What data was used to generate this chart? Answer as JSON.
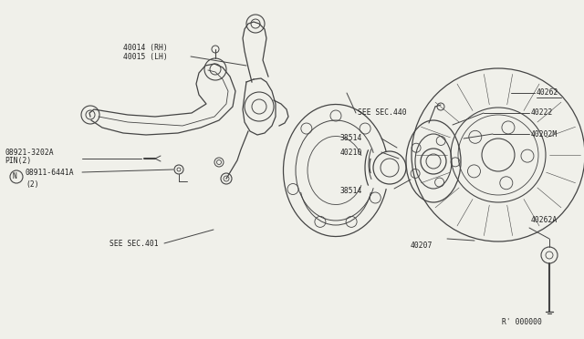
{
  "bg_color": "#f0f0ea",
  "line_color": "#444444",
  "text_color": "#222222",
  "ref_code": "R' 000000",
  "figsize": [
    6.4,
    3.72
  ],
  "dpi": 100,
  "font_size": 5.8,
  "font_family": "monospace",
  "parts": {
    "knuckle_label": "40014 (RH)\n40015 (LH)",
    "pin_label": "08921-3202A\nPIN(2)",
    "nut_label": "N08911-6441A\n    (2)",
    "sec440": "SEE SEC.440",
    "sec401": "SEE SEC.401",
    "p40222": "40222",
    "p40202M": "40202M",
    "p40262": "40262",
    "p40262A": "40262A",
    "p38514a": "38514",
    "p40210": "40210",
    "p38514b": "38514",
    "p40207": "40207"
  }
}
